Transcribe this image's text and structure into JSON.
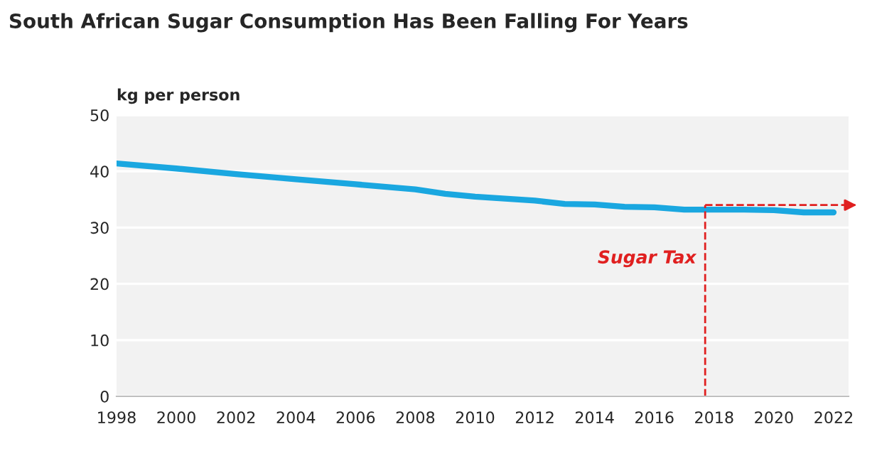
{
  "chart_data": {
    "type": "line",
    "title": "South African Sugar Consumption Has Been Falling For Years",
    "ylabel": "kg per person",
    "x": [
      1998,
      2000,
      2002,
      2004,
      2006,
      2008,
      2009,
      2010,
      2012,
      2013,
      2014,
      2015,
      2016,
      2017,
      2018,
      2019,
      2020,
      2021,
      2022
    ],
    "series": [
      {
        "color": "#1aa7e0",
        "values": [
          41.4,
          40.5,
          39.5,
          38.6,
          37.7,
          36.8,
          36.0,
          35.5,
          34.8,
          34.2,
          34.1,
          33.7,
          33.6,
          33.2,
          33.2,
          33.2,
          33.1,
          32.7,
          32.7
        ]
      }
    ],
    "xlim": [
      1998,
      2022.5
    ],
    "xticks": [
      1998,
      2000,
      2002,
      2004,
      2006,
      2008,
      2010,
      2012,
      2014,
      2016,
      2018,
      2020,
      2022
    ],
    "ylim": [
      0,
      50
    ],
    "yticks": [
      0,
      10,
      20,
      30,
      40,
      50
    ],
    "grid": "y",
    "marker": "none",
    "line_style": "solid",
    "ref_lines": [
      {
        "axis": "x",
        "value": 2017.7,
        "label": "Sugar Tax",
        "color": "#e02020",
        "line_style": "dashed"
      },
      {
        "axis": "y",
        "value": 34,
        "color": "#e02020",
        "line_style": "dashed"
      }
    ]
  }
}
